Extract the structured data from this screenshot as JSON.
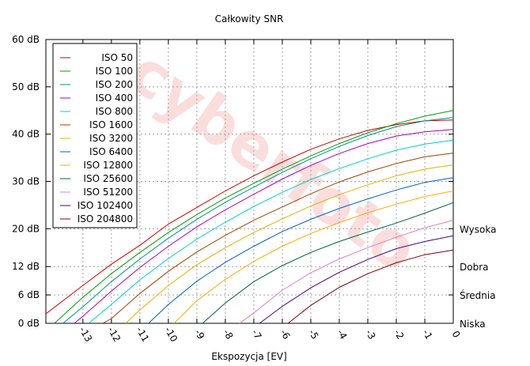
{
  "chart_data": {
    "type": "line",
    "title": "Całkowity SNR",
    "xlabel": "Ekspozycja [EV]",
    "ylabel": "",
    "xlim": [
      -14.3,
      0
    ],
    "ylim": [
      0,
      60
    ],
    "x_ticks": [
      -13,
      -12,
      -11,
      -10,
      -9,
      -8,
      -7,
      -6,
      -5,
      -4,
      -3,
      -2,
      -1,
      0
    ],
    "y_ticks": [
      {
        "value": 0,
        "label": "0 dB"
      },
      {
        "value": 6,
        "label": "6 dB"
      },
      {
        "value": 12,
        "label": "12 dB"
      },
      {
        "value": 20,
        "label": "20 dB"
      },
      {
        "value": 30,
        "label": "30 dB"
      },
      {
        "value": 40,
        "label": "40 dB"
      },
      {
        "value": 50,
        "label": "50 dB"
      },
      {
        "value": 60,
        "label": "60 dB"
      }
    ],
    "right_labels": [
      {
        "value": 20,
        "label": "Wysoka"
      },
      {
        "value": 12,
        "label": "Dobra"
      },
      {
        "value": 6,
        "label": "Średnia"
      },
      {
        "value": 0,
        "label": "Niska"
      }
    ],
    "grid": true,
    "legend_position": "top-left",
    "series": [
      {
        "name": "ISO 50",
        "color": "#cc0000",
        "x": [
          -14.3,
          -13,
          -12,
          -11,
          -10,
          -9,
          -8,
          -7,
          -6,
          -5,
          -4,
          -3,
          -2,
          -1,
          0
        ],
        "y": [
          2,
          8,
          12.5,
          16.5,
          21,
          24.5,
          28,
          31.2,
          34.1,
          36.8,
          39,
          40.8,
          42,
          42.8,
          43
        ]
      },
      {
        "name": "ISO 100",
        "color": "#00a000",
        "x": [
          -14,
          -13,
          -12,
          -11,
          -10,
          -9,
          -8,
          -7,
          -6,
          -5,
          -4,
          -3,
          -2,
          -1,
          0
        ],
        "y": [
          0,
          5.5,
          10.5,
          15,
          19.2,
          23,
          26.5,
          29.6,
          32.6,
          35.4,
          38,
          40.3,
          42.2,
          43.8,
          45
        ]
      },
      {
        "name": "ISO 200",
        "color": "#009090",
        "x": [
          -13.7,
          -13,
          -12,
          -11,
          -10,
          -9,
          -8,
          -7,
          -6,
          -5,
          -4,
          -3,
          -2,
          -1,
          0
        ],
        "y": [
          0,
          3.5,
          8.8,
          13.6,
          18,
          22,
          25.6,
          28.8,
          31.9,
          34.8,
          37.4,
          39.7,
          41.6,
          42.8,
          43.5
        ]
      },
      {
        "name": "ISO 400",
        "color": "#b000b0",
        "x": [
          -13.3,
          -13,
          -12,
          -11,
          -10,
          -9,
          -8,
          -7,
          -6,
          -5,
          -4,
          -3,
          -2,
          -1,
          0
        ],
        "y": [
          0,
          1.5,
          6.8,
          11.8,
          16.3,
          20.4,
          24,
          27.3,
          30.5,
          33.4,
          35.9,
          38,
          39.6,
          40.5,
          41
        ]
      },
      {
        "name": "ISO 800",
        "color": "#00cccc",
        "x": [
          -12.8,
          -12,
          -11,
          -10,
          -9,
          -8,
          -7,
          -6,
          -5,
          -4,
          -3,
          -2,
          -1,
          0
        ],
        "y": [
          0,
          4,
          9.2,
          13.7,
          17.8,
          21.4,
          24.7,
          27.7,
          30.4,
          32.7,
          34.8,
          36.6,
          37.9,
          38.7
        ]
      },
      {
        "name": "ISO 1600",
        "color": "#a04000",
        "x": [
          -12.3,
          -12,
          -11,
          -10,
          -9,
          -8,
          -7,
          -6,
          -5,
          -4,
          -3,
          -2,
          -1,
          0
        ],
        "y": [
          0,
          1,
          6.3,
          11,
          15.1,
          18.6,
          21.8,
          24.6,
          27.4,
          29.9,
          32,
          33.8,
          35.2,
          36
        ]
      },
      {
        "name": "ISO 3200",
        "color": "#e0b000",
        "x": [
          -11.5,
          -11,
          -10,
          -9,
          -8,
          -7,
          -6,
          -5,
          -4,
          -3,
          -2,
          -1,
          0
        ],
        "y": [
          0,
          2.8,
          8,
          12.4,
          16,
          19.2,
          22.1,
          24.8,
          27.2,
          29.3,
          31.2,
          32.6,
          33.5
        ]
      },
      {
        "name": "ISO 6400",
        "color": "#0060c0",
        "x": [
          -10.7,
          -10,
          -9,
          -8,
          -7,
          -6,
          -5,
          -4,
          -3,
          -2,
          -1,
          0
        ],
        "y": [
          0,
          4,
          8.9,
          12.9,
          16.3,
          19.4,
          22,
          24.3,
          26.3,
          28.2,
          29.8,
          30.8
        ]
      },
      {
        "name": "ISO 12800",
        "color": "#ffaa00",
        "x": [
          -9.8,
          -9,
          -8,
          -7,
          -6,
          -5,
          -4,
          -3,
          -2,
          -1,
          0
        ],
        "y": [
          0,
          4.8,
          9.3,
          13.1,
          16.3,
          19,
          21.3,
          23.4,
          25.2,
          26.8,
          28
        ]
      },
      {
        "name": "ISO 25600",
        "color": "#006040",
        "x": [
          -8.8,
          -8,
          -7,
          -6,
          -5,
          -4,
          -3,
          -2,
          -1,
          0
        ],
        "y": [
          0,
          4.3,
          8.8,
          12.2,
          15,
          17.3,
          19.3,
          21.2,
          23.3,
          25.5
        ]
      },
      {
        "name": "ISO 51200",
        "color": "#e080c0",
        "x": [
          -7.5,
          -7,
          -6,
          -5,
          -4,
          -3,
          -2,
          -1,
          0
        ],
        "y": [
          0,
          2.2,
          7,
          10.7,
          13.6,
          16,
          18.2,
          20.2,
          21.8
        ]
      },
      {
        "name": "ISO 102400",
        "color": "#400080",
        "x": [
          -6.8,
          -6,
          -5,
          -4,
          -3,
          -2,
          -1,
          0
        ],
        "y": [
          0,
          3.6,
          7.5,
          10.8,
          13.5,
          15.8,
          17.3,
          18.5
        ]
      },
      {
        "name": "ISO 204800",
        "color": "#800000",
        "x": [
          -5.8,
          -5,
          -4,
          -3,
          -2,
          -1,
          0
        ],
        "y": [
          0,
          3.8,
          7.6,
          10.5,
          12.8,
          14.5,
          15.5
        ]
      }
    ]
  }
}
